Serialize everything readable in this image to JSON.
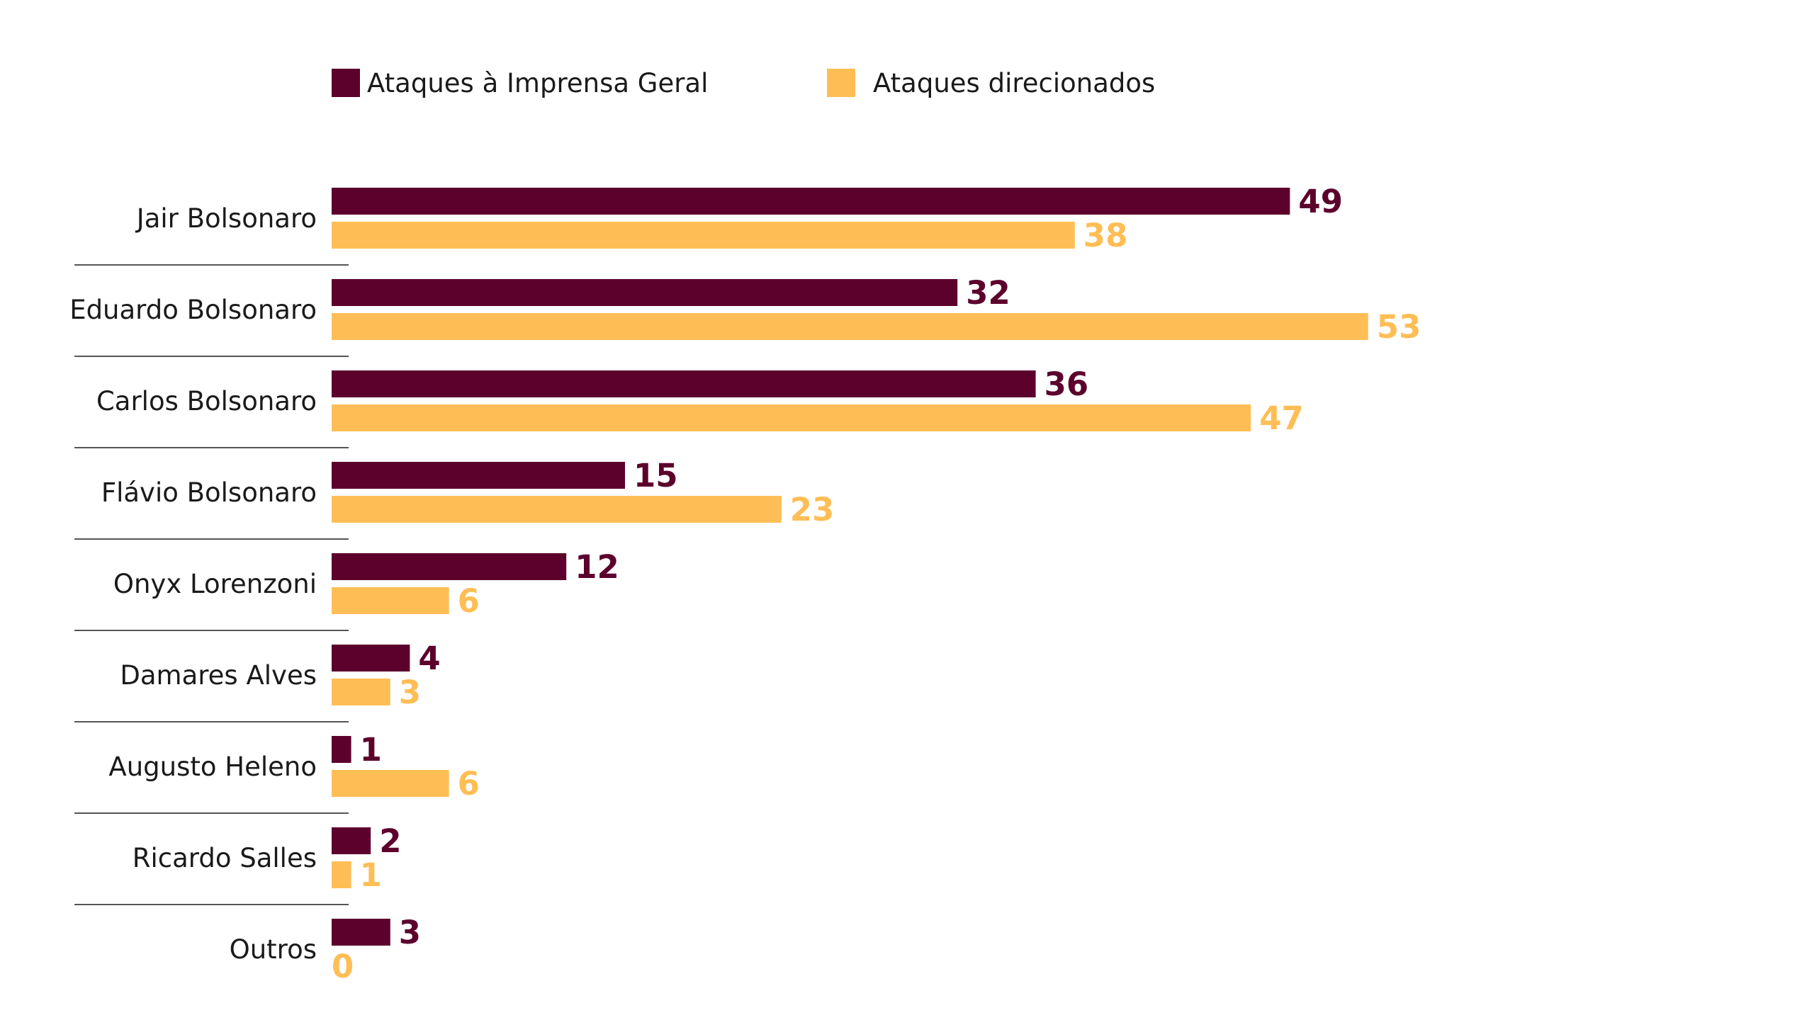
{
  "chart_data": {
    "type": "bar",
    "orientation": "horizontal",
    "categories": [
      "Jair Bolsonaro",
      "Eduardo Bolsonaro",
      "Carlos Bolsonaro",
      "Flávio Bolsonaro",
      "Onyx Lorenzoni",
      "Damares Alves",
      "Augusto Heleno",
      "Ricardo Salles",
      "Outros"
    ],
    "series": [
      {
        "name": "Ataques à Imprensa Geral",
        "color": "#5c002c",
        "values": [
          49,
          32,
          36,
          15,
          12,
          4,
          1,
          2,
          3
        ]
      },
      {
        "name": "Ataques direcionados",
        "color": "#ffbe55",
        "values": [
          38,
          53,
          47,
          23,
          6,
          3,
          6,
          1,
          0
        ]
      }
    ],
    "title": "",
    "xlabel": "",
    "ylabel": "",
    "xlim": [
      0,
      53
    ],
    "grid": false,
    "legend_position": "top",
    "data_labels": true
  }
}
